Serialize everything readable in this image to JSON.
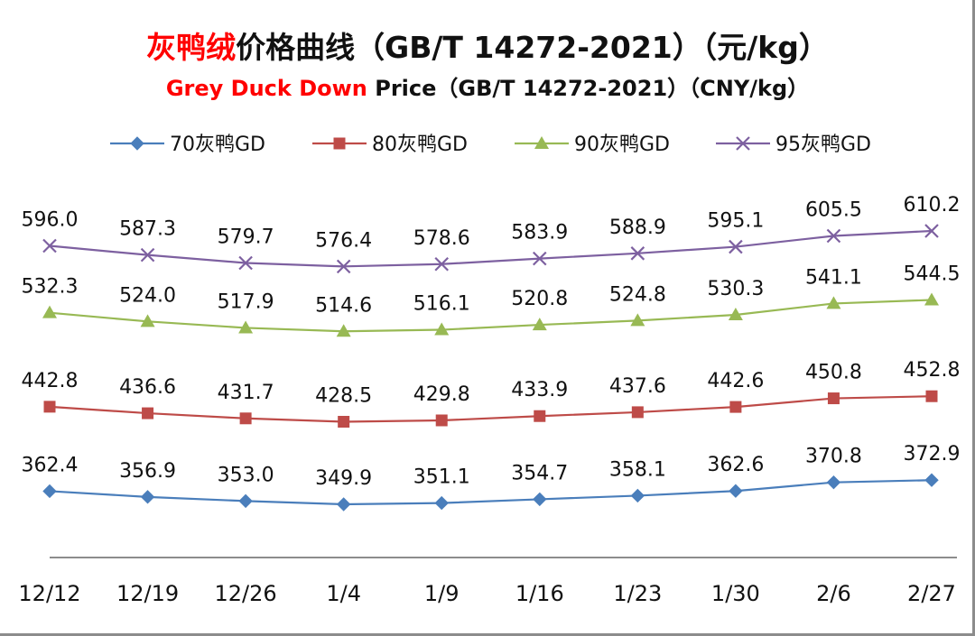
{
  "title": {
    "cn_highlight": "灰鸭绒",
    "cn_rest": "价格曲线（GB/T 14272-2021）（元/kg）",
    "en_highlight": "Grey Duck Down",
    "en_rest": " Price（GB/T 14272-2021）（CNY/kg）"
  },
  "colors": {
    "highlight": "#ff0000",
    "axis": "#8c8c8c"
  },
  "chart_data": {
    "type": "line",
    "categories": [
      "12/12",
      "12/19",
      "12/26",
      "1/4",
      "1/9",
      "1/16",
      "1/23",
      "1/30",
      "2/6",
      "2/27"
    ],
    "series": [
      {
        "name": "70灰鸭GD",
        "marker": "diamond",
        "color": "#4a7ebb",
        "values": [
          362.4,
          356.9,
          353.0,
          349.9,
          351.1,
          354.7,
          358.1,
          362.6,
          370.8,
          372.9
        ]
      },
      {
        "name": "80灰鸭GD",
        "marker": "square",
        "color": "#be4b48",
        "values": [
          442.8,
          436.6,
          431.7,
          428.5,
          429.8,
          433.9,
          437.6,
          442.6,
          450.8,
          452.8
        ]
      },
      {
        "name": "90灰鸭GD",
        "marker": "triangle",
        "color": "#98b954",
        "values": [
          532.3,
          524.0,
          517.9,
          514.6,
          516.1,
          520.8,
          524.8,
          530.3,
          541.1,
          544.5
        ]
      },
      {
        "name": "95灰鸭GD",
        "marker": "x",
        "color": "#7d60a0",
        "values": [
          596.0,
          587.3,
          579.7,
          576.4,
          578.6,
          583.9,
          588.9,
          595.1,
          605.5,
          610.2
        ]
      }
    ],
    "legend_position": "top",
    "grid": false,
    "y_axis_visible": false
  }
}
